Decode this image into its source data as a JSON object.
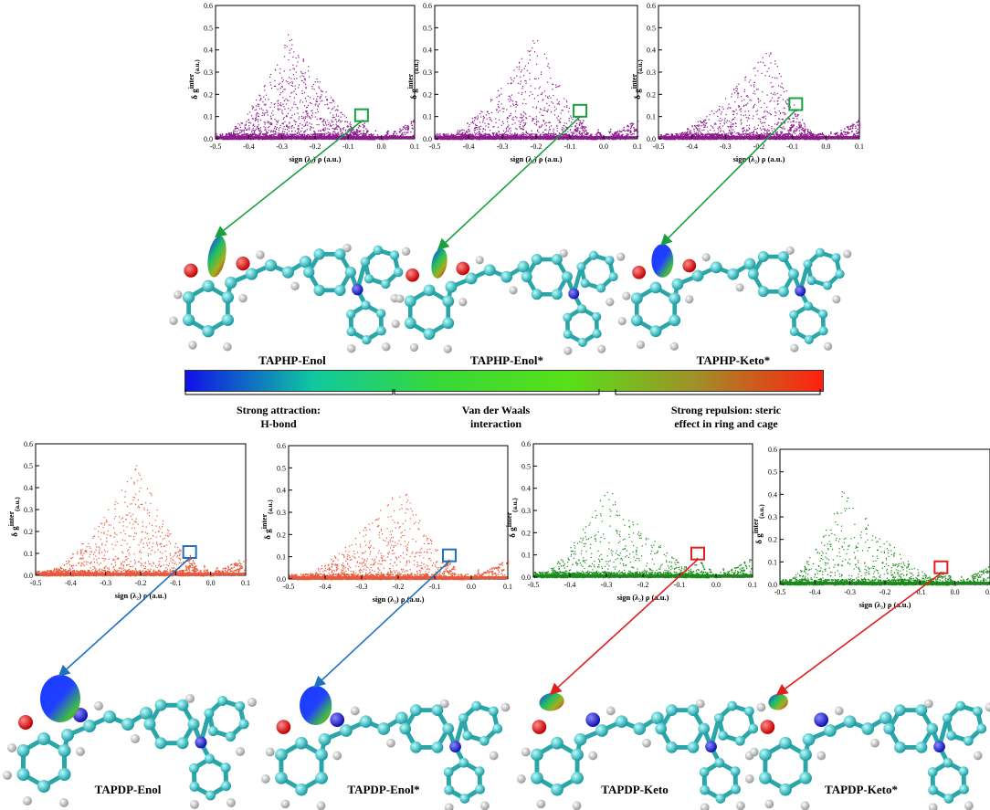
{
  "axis": {
    "xlabel": "sign (λ₂) ρ (a.u.)",
    "ylabel": "δ g",
    "ylabel_sup": "inter",
    "ylabel_sub": "(a.u.)",
    "xticks": [
      "-0.5",
      "-0.4",
      "-0.3",
      "-0.2",
      "-0.1",
      "0.0",
      "0.1"
    ],
    "yticks": [
      "0.0",
      "0.1",
      "0.2",
      "0.3",
      "0.4",
      "0.5",
      "0.6"
    ]
  },
  "colorbar": {
    "colors": [
      "#1010e8",
      "#10c8a0",
      "#38d838",
      "#58e018",
      "#a09028",
      "#ff2010"
    ],
    "bands": [
      {
        "line1": "Strong attraction:",
        "line2": "H-bond"
      },
      {
        "line1": "Van der Waals",
        "line2": "interaction"
      },
      {
        "line1": "Strong repulsion: steric",
        "line2": "effect in ring and cage"
      }
    ]
  },
  "chart_data": [
    {
      "type": "scatter",
      "name": "TAPHP-Enol",
      "title": "",
      "xlim": [
        -0.5,
        0.1
      ],
      "ylim": [
        0,
        0.6
      ],
      "color": "#8b1a8b",
      "box_color": "#18a040",
      "peak_x": -0.28,
      "peak_y": 0.48,
      "spike_x": -0.06,
      "spike_y": 0.1,
      "density": 1.0
    },
    {
      "type": "scatter",
      "name": "TAPHP-Enol*",
      "title": "",
      "xlim": [
        -0.5,
        0.1
      ],
      "ylim": [
        0,
        0.6
      ],
      "color": "#8b1a8b",
      "box_color": "#18a040",
      "peak_x": -0.2,
      "peak_y": 0.47,
      "spike_x": -0.07,
      "spike_y": 0.12,
      "density": 0.7
    },
    {
      "type": "scatter",
      "name": "TAPHP-Keto*",
      "title": "",
      "xlim": [
        -0.5,
        0.1
      ],
      "ylim": [
        0,
        0.6
      ],
      "color": "#8b1a8b",
      "box_color": "#18a040",
      "peak_x": -0.17,
      "peak_y": 0.42,
      "spike_x": -0.09,
      "spike_y": 0.15,
      "density": 0.8
    },
    {
      "type": "scatter",
      "name": "TAPDP-Enol",
      "title": "",
      "xlim": [
        -0.5,
        0.1
      ],
      "ylim": [
        0,
        0.6
      ],
      "color": "#e8583a",
      "box_color": "#2070c0",
      "peak_x": -0.21,
      "peak_y": 0.52,
      "spike_x": -0.06,
      "spike_y": 0.1,
      "density": 0.7
    },
    {
      "type": "scatter",
      "name": "TAPDP-Enol*",
      "title": "",
      "xlim": [
        -0.5,
        0.1
      ],
      "ylim": [
        0,
        0.6
      ],
      "color": "#e8583a",
      "box_color": "#2070c0",
      "peak_x": -0.19,
      "peak_y": 0.45,
      "spike_x": -0.06,
      "spike_y": 0.1,
      "density": 0.7
    },
    {
      "type": "scatter",
      "name": "TAPDP-Keto",
      "title": "",
      "xlim": [
        -0.5,
        0.1
      ],
      "ylim": [
        0,
        0.6
      ],
      "color": "#1a8a1a",
      "box_color": "#e02020",
      "peak_x": -0.3,
      "peak_y": 0.41,
      "spike_x": -0.05,
      "spike_y": 0.1,
      "density": 0.6
    },
    {
      "type": "scatter",
      "name": "TAPDP-Keto*",
      "title": "",
      "xlim": [
        -0.5,
        0.1
      ],
      "ylim": [
        0,
        0.6
      ],
      "color": "#1a8a1a",
      "box_color": "#e02020",
      "peak_x": -0.32,
      "peak_y": 0.43,
      "spike_x": -0.04,
      "spike_y": 0.07,
      "density": 0.6
    }
  ],
  "molecule_labels": [
    "TAPHP-Enol",
    "TAPHP-Enol*",
    "TAPHP-Keto*",
    "TAPDP-Enol",
    "TAPDP-Enol*",
    "TAPDP-Keto",
    "TAPDP-Keto*"
  ]
}
